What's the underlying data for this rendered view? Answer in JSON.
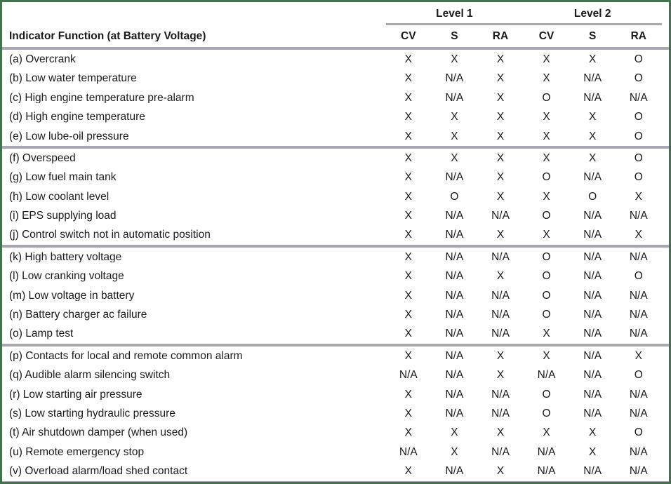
{
  "colors": {
    "frame_border": "#44714f",
    "divider": "#a8a8b5",
    "text": "#1b1b1b",
    "background": "#ffffff"
  },
  "table": {
    "header": {
      "function_column": "Indicator Function (at Battery Voltage)",
      "groups": [
        {
          "label": "Level 1",
          "columns": [
            "CV",
            "S",
            "RA"
          ]
        },
        {
          "label": "Level 2",
          "columns": [
            "CV",
            "S",
            "RA"
          ]
        }
      ]
    },
    "groups": [
      {
        "rows": [
          {
            "label": "(a) Overcrank",
            "values": [
              "X",
              "X",
              "X",
              "X",
              "X",
              "O"
            ]
          },
          {
            "label": "(b) Low water temperature",
            "values": [
              "X",
              "N/A",
              "X",
              "X",
              "N/A",
              "O"
            ]
          },
          {
            "label": "(c) High engine temperature pre-alarm",
            "values": [
              "X",
              "N/A",
              "X",
              "O",
              "N/A",
              "N/A"
            ]
          },
          {
            "label": "(d) High engine temperature",
            "values": [
              "X",
              "X",
              "X",
              "X",
              "X",
              "O"
            ]
          },
          {
            "label": "(e) Low lube-oil pressure",
            "values": [
              "X",
              "X",
              "X",
              "X",
              "X",
              "O"
            ]
          }
        ]
      },
      {
        "rows": [
          {
            "label": "(f) Overspeed",
            "values": [
              "X",
              "X",
              "X",
              "X",
              "X",
              "O"
            ]
          },
          {
            "label": "(g) Low fuel main tank",
            "values": [
              "X",
              "N/A",
              "X",
              "O",
              "N/A",
              "O"
            ]
          },
          {
            "label": "(h) Low coolant level",
            "values": [
              "X",
              "O",
              "X",
              "X",
              "O",
              "X"
            ]
          },
          {
            "label": "(i) EPS supplying load",
            "values": [
              "X",
              "N/A",
              "N/A",
              "O",
              "N/A",
              "N/A"
            ]
          },
          {
            "label": "(j) Control switch not in automatic position",
            "values": [
              "X",
              "N/A",
              "X",
              "X",
              "N/A",
              "X"
            ]
          }
        ]
      },
      {
        "rows": [
          {
            "label": "(k) High battery voltage",
            "values": [
              "X",
              "N/A",
              "N/A",
              "O",
              "N/A",
              "N/A"
            ]
          },
          {
            "label": "(l) Low cranking voltage",
            "values": [
              "X",
              "N/A",
              "X",
              "O",
              "N/A",
              "O"
            ]
          },
          {
            "label": "(m) Low voltage in battery",
            "values": [
              "X",
              "N/A",
              "N/A",
              "O",
              "N/A",
              "N/A"
            ]
          },
          {
            "label": "(n) Battery charger ac failure",
            "values": [
              "X",
              "N/A",
              "N/A",
              "O",
              "N/A",
              "N/A"
            ]
          },
          {
            "label": "(o) Lamp test",
            "values": [
              "X",
              "N/A",
              "N/A",
              "X",
              "N/A",
              "N/A"
            ]
          }
        ]
      },
      {
        "rows": [
          {
            "label": "(p) Contacts for local and remote common alarm",
            "values": [
              "X",
              "N/A",
              "X",
              "X",
              "N/A",
              "X"
            ]
          },
          {
            "label": "(q) Audible alarm silencing switch",
            "values": [
              "N/A",
              "N/A",
              "X",
              "N/A",
              "N/A",
              "O"
            ]
          },
          {
            "label": "(r) Low starting air pressure",
            "values": [
              "X",
              "N/A",
              "N/A",
              "O",
              "N/A",
              "N/A"
            ]
          },
          {
            "label": "(s) Low starting hydraulic pressure",
            "values": [
              "X",
              "N/A",
              "N/A",
              "O",
              "N/A",
              "N/A"
            ]
          },
          {
            "label": "(t) Air shutdown damper (when used)",
            "values": [
              "X",
              "X",
              "X",
              "X",
              "X",
              "O"
            ]
          },
          {
            "label": "(u) Remote emergency stop",
            "values": [
              "N/A",
              "X",
              "N/A",
              "N/A",
              "X",
              "N/A"
            ]
          },
          {
            "label": "(v) Overload alarm/load shed contact",
            "values": [
              "X",
              "N/A",
              "X",
              "N/A",
              "N/A",
              "N/A"
            ]
          }
        ]
      }
    ]
  }
}
